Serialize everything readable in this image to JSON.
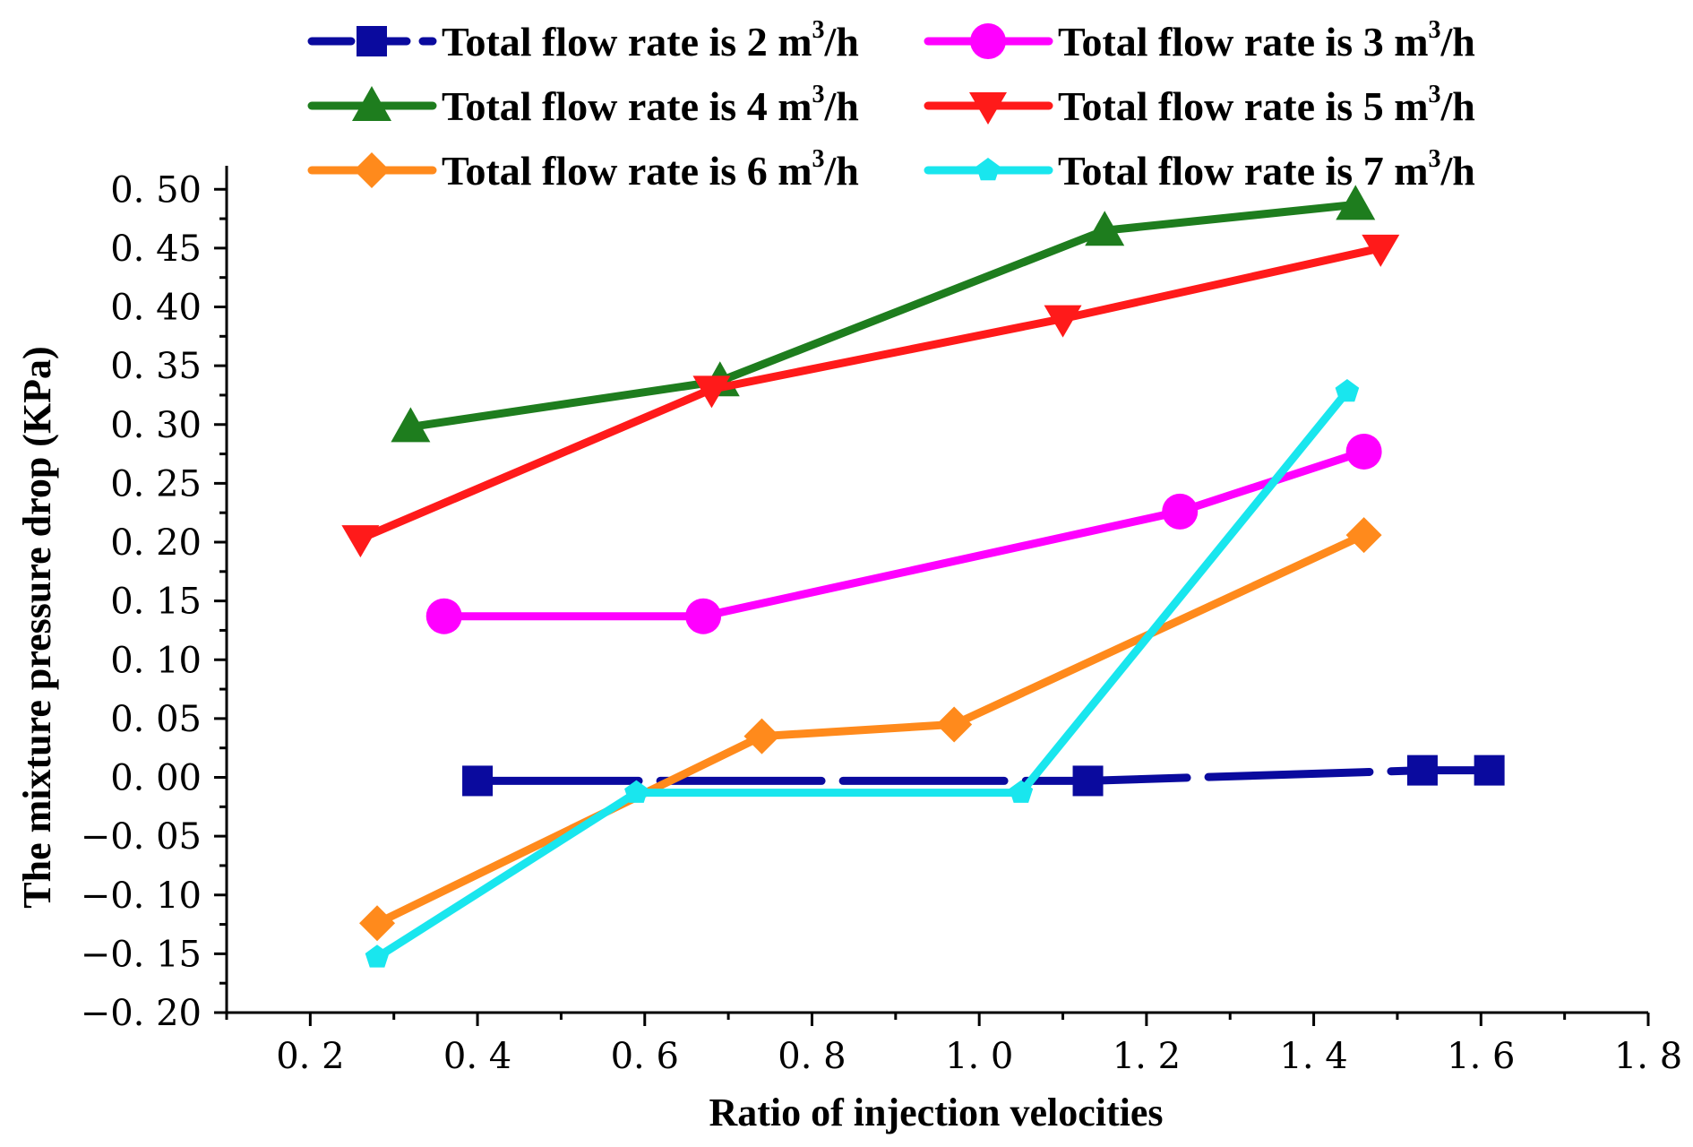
{
  "chart_data": {
    "type": "line",
    "title": "",
    "xlabel": "Ratio of injection velocities",
    "ylabel": "The mixture pressure drop (KPa)",
    "xlim": [
      0.1,
      1.8
    ],
    "ylim": [
      -0.2,
      0.52
    ],
    "x_ticks": [
      0.2,
      0.4,
      0.6,
      0.8,
      1.0,
      1.2,
      1.4,
      1.6,
      1.8
    ],
    "x_tick_labels": [
      "0. 2",
      "0. 4",
      "0. 6",
      "0. 8",
      "1. 0",
      "1. 2",
      "1. 4",
      "1. 6",
      "1. 8"
    ],
    "y_ticks": [
      -0.2,
      -0.15,
      -0.1,
      -0.05,
      0.0,
      0.05,
      0.1,
      0.15,
      0.2,
      0.25,
      0.3,
      0.35,
      0.4,
      0.45,
      0.5
    ],
    "y_tick_labels": [
      "−0. 20",
      "−0. 15",
      "−0. 10",
      "−0. 05",
      "0. 00",
      "0. 05",
      "0. 10",
      "0. 15",
      "0. 20",
      "0. 25",
      "0. 30",
      "0. 35",
      "0. 40",
      "0. 45",
      "0. 50"
    ],
    "grid": false,
    "legend_position": "top",
    "series": [
      {
        "name": "Total flow rate is 2 m3/h",
        "label_main": "Total flow rate is 2 m",
        "label_sup": "3",
        "label_tail": "/h",
        "color": "#0a0a9e",
        "marker": "square",
        "dashed": true,
        "points": [
          [
            0.4,
            -0.003
          ],
          [
            1.13,
            -0.003
          ],
          [
            1.53,
            0.006
          ],
          [
            1.61,
            0.006
          ]
        ]
      },
      {
        "name": "Total flow rate is 3 m3/h",
        "label_main": "Total flow rate is 3 m",
        "label_sup": "3",
        "label_tail": "/h",
        "color": "#ff00ff",
        "marker": "circle",
        "dashed": false,
        "points": [
          [
            0.36,
            0.137
          ],
          [
            0.67,
            0.137
          ],
          [
            1.24,
            0.226
          ],
          [
            1.46,
            0.277
          ]
        ]
      },
      {
        "name": "Total flow rate is 4 m3/h",
        "label_main": "Total flow rate is 4 m",
        "label_sup": "3",
        "label_tail": "/h",
        "color": "#1e7d1e",
        "marker": "triangle-up",
        "dashed": false,
        "points": [
          [
            0.32,
            0.298
          ],
          [
            0.69,
            0.337
          ],
          [
            1.15,
            0.465
          ],
          [
            1.45,
            0.487
          ]
        ]
      },
      {
        "name": "Total flow rate is 5 m3/h",
        "label_main": "Total flow rate is 5 m",
        "label_sup": "3",
        "label_tail": "/h",
        "color": "#ff1a1a",
        "marker": "triangle-down",
        "dashed": false,
        "points": [
          [
            0.26,
            0.203
          ],
          [
            0.68,
            0.33
          ],
          [
            1.1,
            0.39
          ],
          [
            1.48,
            0.45
          ]
        ]
      },
      {
        "name": "Total flow rate is 6 m3/h",
        "label_main": "Total flow rate is 6 m",
        "label_sup": "3",
        "label_tail": "/h",
        "color": "#ff8a1c",
        "marker": "diamond",
        "dashed": false,
        "points": [
          [
            0.28,
            -0.124
          ],
          [
            0.74,
            0.035
          ],
          [
            0.97,
            0.045
          ],
          [
            1.46,
            0.206
          ]
        ]
      },
      {
        "name": "Total flow rate is 7 m3/h",
        "label_main": "Total flow rate is 7 m",
        "label_sup": "3",
        "label_tail": "/h",
        "color": "#19e6ee",
        "marker": "pentagon",
        "dashed": false,
        "points": [
          [
            0.28,
            -0.153
          ],
          [
            0.59,
            -0.013
          ],
          [
            1.05,
            -0.013
          ],
          [
            1.44,
            0.328
          ]
        ]
      }
    ]
  }
}
